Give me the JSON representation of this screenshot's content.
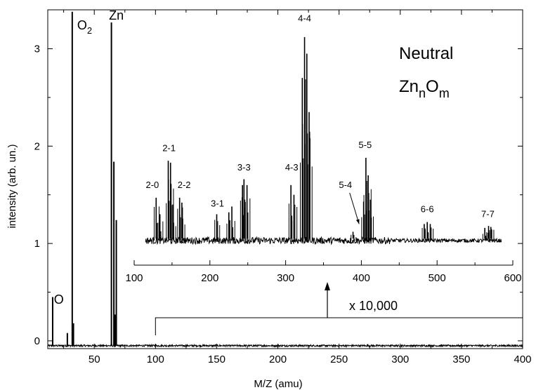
{
  "chart_data": [
    {
      "id": "main",
      "type": "line",
      "xlabel": "M/Z (amu)",
      "ylabel": "intensity (arb. un.)",
      "xlim": [
        12,
        400
      ],
      "ylim": [
        -0.08,
        3.4
      ],
      "xticks": [
        50,
        100,
        150,
        200,
        250,
        300,
        350,
        400
      ],
      "yticks": [
        0,
        1,
        2,
        3
      ],
      "baseline": -0.05,
      "peaks": [
        {
          "x": 16,
          "y": 0.45
        },
        {
          "x": 28,
          "y": 0.08
        },
        {
          "x": 32,
          "y": 3.38
        },
        {
          "x": 33,
          "y": 0.18
        },
        {
          "x": 64,
          "y": 3.27
        },
        {
          "x": 66,
          "y": 1.84
        },
        {
          "x": 68,
          "y": 1.24
        },
        {
          "x": 67,
          "y": 0.27
        }
      ],
      "peak_labels": [
        {
          "text": "O",
          "x": 17,
          "y": 0.38
        },
        {
          "text": "O",
          "sub": "2",
          "x": 36,
          "y": 3.2
        },
        {
          "text": "Zn",
          "x": 62,
          "y": 3.3
        }
      ]
    },
    {
      "id": "inset",
      "type": "line",
      "xlim": [
        100,
        600
      ],
      "xticks": [
        100,
        200,
        300,
        400,
        500,
        600
      ],
      "baseline": 1.03,
      "scale_label": "x 10,000",
      "zoom_region_start": 100,
      "peaks": [
        {
          "x": 129,
          "y": 1.47
        },
        {
          "x": 134,
          "y": 1.3
        },
        {
          "x": 145,
          "y": 1.85
        },
        {
          "x": 148,
          "y": 1.83
        },
        {
          "x": 151,
          "y": 1.4
        },
        {
          "x": 160,
          "y": 1.47
        },
        {
          "x": 163,
          "y": 1.42
        },
        {
          "x": 209,
          "y": 1.3
        },
        {
          "x": 225,
          "y": 1.32
        },
        {
          "x": 229,
          "y": 1.38
        },
        {
          "x": 243,
          "y": 1.6
        },
        {
          "x": 245,
          "y": 1.66
        },
        {
          "x": 249,
          "y": 1.6
        },
        {
          "x": 307,
          "y": 1.6
        },
        {
          "x": 311,
          "y": 1.5
        },
        {
          "x": 322,
          "y": 2.7
        },
        {
          "x": 325,
          "y": 3.12
        },
        {
          "x": 328,
          "y": 2.95
        },
        {
          "x": 331,
          "y": 2.35
        },
        {
          "x": 389,
          "y": 1.12
        },
        {
          "x": 403,
          "y": 1.43
        },
        {
          "x": 406,
          "y": 1.88
        },
        {
          "x": 409,
          "y": 1.7
        },
        {
          "x": 412,
          "y": 1.45
        },
        {
          "x": 483,
          "y": 1.2
        },
        {
          "x": 487,
          "y": 1.22
        },
        {
          "x": 491,
          "y": 1.2
        },
        {
          "x": 563,
          "y": 1.16
        },
        {
          "x": 568,
          "y": 1.18
        },
        {
          "x": 571,
          "y": 1.17
        }
      ],
      "peak_labels": [
        {
          "text": "2-0",
          "x": 124,
          "y": 1.57
        },
        {
          "text": "2-1",
          "x": 146,
          "y": 1.95
        },
        {
          "text": "2-2",
          "x": 166,
          "y": 1.57
        },
        {
          "text": "3-1",
          "x": 210,
          "y": 1.38
        },
        {
          "text": "3-3",
          "x": 245,
          "y": 1.75
        },
        {
          "text": "4-3",
          "x": 308,
          "y": 1.75
        },
        {
          "text": "4-4",
          "x": 325,
          "y": 3.28
        },
        {
          "text": "5-4",
          "x": 379,
          "y": 1.57
        },
        {
          "text": "5-5",
          "x": 405,
          "y": 1.98
        },
        {
          "text": "6-6",
          "x": 487,
          "y": 1.32
        },
        {
          "text": "7-7",
          "x": 567,
          "y": 1.27
        }
      ],
      "arrow_label": "5-4"
    }
  ],
  "annotation": {
    "line1": "Neutral",
    "formula_zn": "Zn",
    "formula_n": "n",
    "formula_o": "O",
    "formula_m": "m"
  }
}
